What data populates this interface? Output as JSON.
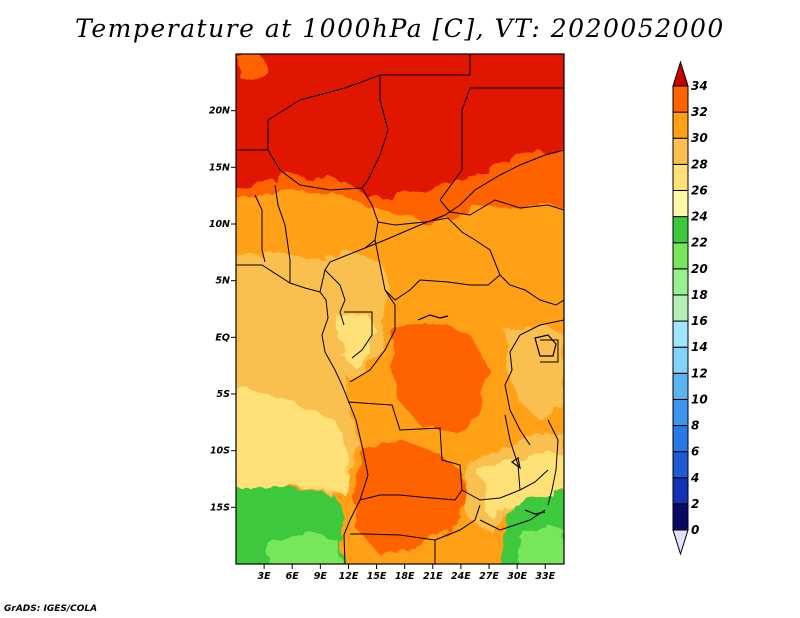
{
  "title": "Temperature at 1000hPa [C], VT: 2020052000",
  "credit": "GrADS: IGES/COLA",
  "map": {
    "lon_range": [
      0,
      35
    ],
    "lat_range": [
      -20,
      25
    ],
    "lon_ticks": [
      {
        "value": 3,
        "label": "3E"
      },
      {
        "value": 6,
        "label": "6E"
      },
      {
        "value": 9,
        "label": "9E"
      },
      {
        "value": 12,
        "label": "12E"
      },
      {
        "value": 15,
        "label": "15E"
      },
      {
        "value": 18,
        "label": "18E"
      },
      {
        "value": 21,
        "label": "21E"
      },
      {
        "value": 24,
        "label": "24E"
      },
      {
        "value": 27,
        "label": "27E"
      },
      {
        "value": 30,
        "label": "30E"
      },
      {
        "value": 33,
        "label": "33E"
      }
    ],
    "lat_ticks": [
      {
        "value": 20,
        "label": "20N"
      },
      {
        "value": 15,
        "label": "15N"
      },
      {
        "value": 10,
        "label": "10N"
      },
      {
        "value": 5,
        "label": "5N"
      },
      {
        "value": 0,
        "label": "EQ"
      },
      {
        "value": -5,
        "label": "5S"
      },
      {
        "value": -10,
        "label": "10S"
      },
      {
        "value": -15,
        "label": "15S"
      }
    ]
  },
  "colorbar": {
    "levels": [
      0,
      2,
      4,
      6,
      8,
      10,
      12,
      14,
      16,
      18,
      20,
      22,
      24,
      26,
      28,
      30,
      32,
      34
    ],
    "colors": [
      "#0a0a64",
      "#1432b4",
      "#1e5ad2",
      "#2878e6",
      "#3c96f0",
      "#5ab4f0",
      "#82d2fa",
      "#a0e6ff",
      "#b4f0b4",
      "#96f08c",
      "#78e65a",
      "#3cc83c",
      "#fffaaa",
      "#ffe178",
      "#fac050",
      "#ffa014",
      "#ff6400",
      "#e11400"
    ],
    "under_color": "#e1e1ff",
    "over_color": "#c80000"
  }
}
